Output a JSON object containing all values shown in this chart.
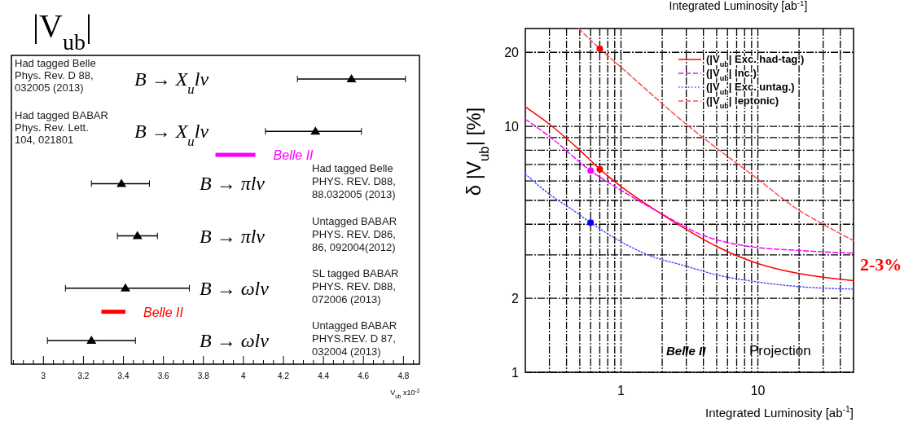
{
  "chart_data": [
    {
      "type": "scatter",
      "title": "|V$_{ub}$|",
      "xlabel": "V$_{ub}$ x10$^{-3}$",
      "orientation": "horizontal",
      "categories": [
        "B → X$_{u}$lν",
        "B → X$_{u}$lν",
        "B → πlν",
        "B → πlν",
        "B → ωlν",
        "B → ωlν"
      ],
      "xlim": [
        2.84,
        4.88
      ],
      "xticks": [
        {
          "value": 2.85,
          "label": null
        },
        {
          "value": 2.9,
          "label": null
        },
        {
          "value": 2.95,
          "label": null
        },
        3,
        {
          "value": 3.05,
          "label": null
        },
        {
          "value": 3.1,
          "label": null
        },
        {
          "value": 3.15,
          "label": null
        },
        3.2,
        {
          "value": 3.25,
          "label": null
        },
        {
          "value": 3.3,
          "label": null
        },
        {
          "value": 3.35,
          "label": null
        },
        3.4,
        {
          "value": 3.45,
          "label": null
        },
        {
          "value": 3.5,
          "label": null
        },
        {
          "value": 3.55,
          "label": null
        },
        3.6,
        {
          "value": 3.65,
          "label": null
        },
        {
          "value": 3.7,
          "label": null
        },
        {
          "value": 3.75,
          "label": null
        },
        3.8,
        {
          "value": 3.85,
          "label": null
        },
        {
          "value": 3.9,
          "label": null
        },
        {
          "value": 3.95,
          "label": null
        },
        4,
        {
          "value": 4.05,
          "label": null
        },
        {
          "value": 4.1,
          "label": null
        },
        {
          "value": 4.15,
          "label": null
        },
        4.2,
        {
          "value": 4.25,
          "label": null
        },
        {
          "value": 4.3,
          "label": null
        },
        {
          "value": 4.35,
          "label": null
        },
        4.4,
        {
          "value": 4.45,
          "label": null
        },
        {
          "value": 4.5,
          "label": null
        },
        {
          "value": 4.55,
          "label": null
        },
        4.6,
        {
          "value": 4.65,
          "label": null
        },
        {
          "value": 4.7,
          "label": null
        },
        {
          "value": 4.75,
          "label": null
        },
        4.8,
        {
          "value": 4.85,
          "label": null
        }
      ],
      "annotations": [
        "Had tagged Belle\nPhys. Rev. D 88,\n032005 (2013)",
        "Had tagged BABAR\nPhys. Rev. Lett.\n104, 021801",
        "Had tagged Belle\nPHYS. REV. D88,\n88.032005 (2013)",
        "Untagged BABAR\nPHYS. REV. D86,\n86, 092004(2012)",
        "SL tagged BABAR\nPHYS. REV. D88,\n072006 (2013)",
        "Untagged BABAR\nPHYS.REV. D 87,\n032004 (2013)"
      ],
      "series": [
        {
          "type": "scatter",
          "marker": "triangle",
          "color": "#000000",
          "values": [
            4.54,
            4.36,
            3.39,
            3.47,
            3.41,
            3.24
          ],
          "errors": [
            [
              4.27,
              4.81
            ],
            [
              4.11,
              4.59
            ],
            [
              3.24,
              3.53
            ],
            [
              3.37,
              3.57
            ],
            [
              3.11,
              3.73
            ],
            [
              3.02,
              3.46
            ]
          ]
        },
        {
          "type": "bar",
          "name": "Belle II",
          "color": "#ff00ff",
          "base": [
            null,
            3.86,
            null,
            null,
            null,
            null
          ],
          "values": [
            null,
            0.2,
            null,
            null,
            null,
            null
          ]
        },
        {
          "type": "bar",
          "name": "Belle II",
          "color": "#ff0000",
          "base": [
            null,
            null,
            null,
            null,
            3.29,
            null
          ],
          "values": [
            null,
            null,
            null,
            null,
            0.12,
            null
          ]
        }
      ]
    },
    {
      "type": "line",
      "xlabel": "Integrated Luminosity [ab$^{-1}$]",
      "ylabel": "δ |V$_{ub}$| [%]",
      "log": "xy",
      "grid": true,
      "legend": "top right",
      "xlim": [
        0.2,
        50
      ],
      "ylim": [
        1,
        25
      ],
      "xticks": [
        {
          "value": 0.3,
          "label": null
        },
        {
          "value": 0.4,
          "label": null
        },
        {
          "value": 0.5,
          "label": null
        },
        {
          "value": 0.6,
          "label": null
        },
        {
          "value": 0.7,
          "label": null
        },
        {
          "value": 0.8,
          "label": null
        },
        {
          "value": 0.9,
          "label": null
        },
        1,
        {
          "value": 2,
          "label": null
        },
        {
          "value": 3,
          "label": null
        },
        {
          "value": 4,
          "label": null
        },
        {
          "value": 5,
          "label": null
        },
        {
          "value": 6,
          "label": null
        },
        {
          "value": 7,
          "label": null
        },
        {
          "value": 8,
          "label": null
        },
        {
          "value": 9,
          "label": null
        },
        10,
        {
          "value": 20,
          "label": null
        },
        {
          "value": 30,
          "label": null
        },
        {
          "value": 40,
          "label": null
        }
      ],
      "yticks": [
        1,
        2,
        {
          "value": 3,
          "label": null
        },
        {
          "value": 4,
          "label": null
        },
        {
          "value": 5,
          "label": null
        },
        {
          "value": 6,
          "label": null
        },
        {
          "value": 7,
          "label": null
        },
        {
          "value": 8,
          "label": null
        },
        {
          "value": 9,
          "label": null
        },
        10,
        20
      ],
      "annotations": [
        "Integrated Luminosity [ab$^{-1}$]",
        "Belle II",
        "Projection",
        "2-3%"
      ],
      "series": [
        {
          "type": "line",
          "name": "(|V$_{ub}$| Exc. had-tag.)",
          "color": "#ff0000",
          "line_style": "solid",
          "x": [
            0.2,
            0.3,
            0.5,
            0.7,
            1,
            1.8,
            2.6,
            5,
            10,
            20,
            50
          ],
          "values": [
            12.0,
            10.2,
            8.0,
            6.7,
            5.7,
            4.55,
            4.0,
            3.25,
            2.77,
            2.52,
            2.36
          ]
        },
        {
          "type": "line",
          "name": "(|V$_{ub}$| Inc.)",
          "color": "#ff00ff",
          "line_style": "dashed",
          "x": [
            0.2,
            0.3,
            0.6,
            1,
            2,
            4,
            8,
            20,
            50
          ],
          "values": [
            10.7,
            9.1,
            6.6,
            5.5,
            4.4,
            3.6,
            3.27,
            3.13,
            3.05
          ]
        },
        {
          "type": "line",
          "name": "(|V$_{ub}$| Exc. untag.)",
          "color": "#4a4aff",
          "line_style": "dotted",
          "x": [
            0.2,
            0.3,
            0.45,
            0.6,
            1.58,
            3,
            5,
            10,
            20,
            50
          ],
          "values": [
            6.4,
            5.3,
            4.55,
            4.06,
            3.0,
            2.7,
            2.49,
            2.33,
            2.23,
            2.18
          ]
        },
        {
          "type": "line",
          "name": "(|V$_{ub}$| leptonic)",
          "color": "#ff5050",
          "line_style": "dashed",
          "x": [
            0.49,
            0.7,
            1,
            3,
            10,
            19.5,
            30,
            50
          ],
          "values": [
            25,
            20.7,
            17.4,
            10.2,
            6.1,
            4.6,
            4.0,
            3.43
          ]
        },
        {
          "type": "scatter",
          "marker": "circle",
          "x": [
            0.7,
            0.7,
            0.6,
            0.6
          ],
          "values": [
            20.7,
            6.7,
            6.6,
            4.06
          ],
          "colors": [
            "#ff0000",
            "#ff0000",
            "#ff00ff",
            "#0000ff"
          ]
        }
      ]
    }
  ]
}
